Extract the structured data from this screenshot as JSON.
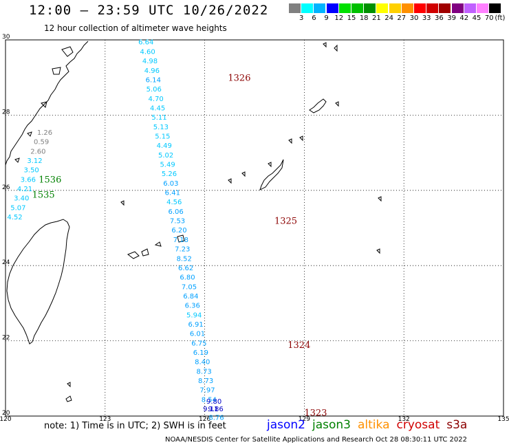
{
  "header": {
    "title": "12:00 – 23:59 UTC 10/26/2022",
    "subtitle": "12 hour collection of altimeter wave heights"
  },
  "legend": {
    "unit": "(ft)",
    "items": [
      {
        "label": "",
        "color": "#808080"
      },
      {
        "label": "3",
        "color": "#00ffff"
      },
      {
        "label": "6",
        "color": "#00b4ff"
      },
      {
        "label": "9",
        "color": "#0000ff"
      },
      {
        "label": "12",
        "color": "#00e000"
      },
      {
        "label": "15",
        "color": "#00c000"
      },
      {
        "label": "18",
        "color": "#009000"
      },
      {
        "label": "21",
        "color": "#ffff00"
      },
      {
        "label": "24",
        "color": "#ffd000"
      },
      {
        "label": "27",
        "color": "#ff9000"
      },
      {
        "label": "30",
        "color": "#ff0000"
      },
      {
        "label": "33",
        "color": "#d00000"
      },
      {
        "label": "36",
        "color": "#a00000"
      },
      {
        "label": "39",
        "color": "#800080"
      },
      {
        "label": "42",
        "color": "#c060ff"
      },
      {
        "label": "45",
        "color": "#ff80ff"
      },
      {
        "label": "70",
        "color": "#000000"
      }
    ]
  },
  "map": {
    "lon_ticks": [
      "120",
      "123",
      "126",
      "129",
      "132",
      "135"
    ],
    "lat_ticks": [
      "20",
      "22",
      "24",
      "26",
      "28",
      "30"
    ],
    "lon_range": [
      120,
      135
    ],
    "lat_range": [
      20,
      30
    ],
    "grid": "dotted",
    "pass_labels": [
      {
        "text": "1326",
        "lon": 126.7,
        "lat": 29.0,
        "color": "#8b0000"
      },
      {
        "text": "1325",
        "lon": 128.1,
        "lat": 25.2,
        "color": "#8b0000"
      },
      {
        "text": "1324",
        "lon": 128.5,
        "lat": 21.9,
        "color": "#8b0000"
      },
      {
        "text": "1323",
        "lon": 129.0,
        "lat": 20.1,
        "color": "#8b0000"
      },
      {
        "text": "1536",
        "lon": 121.0,
        "lat": 26.3,
        "color": "#008000"
      },
      {
        "text": "1535",
        "lon": 120.8,
        "lat": 25.9,
        "color": "#008000"
      }
    ]
  },
  "tracks": [
    {
      "name": "",
      "color_default": "#00c8ff",
      "points": [
        {
          "lon": 124.0,
          "lat": 29.95,
          "v": "6.64"
        },
        {
          "lon": 124.05,
          "lat": 29.7,
          "v": "4.60"
        },
        {
          "lon": 124.12,
          "lat": 29.45,
          "v": "4.98"
        },
        {
          "lon": 124.18,
          "lat": 29.2,
          "v": "4.96"
        },
        {
          "lon": 124.22,
          "lat": 28.95,
          "v": "6.14",
          "c": "#00a0ff"
        },
        {
          "lon": 124.24,
          "lat": 28.7,
          "v": "5.06"
        },
        {
          "lon": 124.3,
          "lat": 28.45,
          "v": "4.70"
        },
        {
          "lon": 124.35,
          "lat": 28.2,
          "v": "4.45"
        },
        {
          "lon": 124.4,
          "lat": 27.95,
          "v": "5.11"
        },
        {
          "lon": 124.45,
          "lat": 27.7,
          "v": "5.13"
        },
        {
          "lon": 124.5,
          "lat": 27.45,
          "v": "5.15"
        },
        {
          "lon": 124.55,
          "lat": 27.2,
          "v": "4.49"
        },
        {
          "lon": 124.6,
          "lat": 26.95,
          "v": "5.02"
        },
        {
          "lon": 124.65,
          "lat": 26.7,
          "v": "5.49"
        },
        {
          "lon": 124.7,
          "lat": 26.45,
          "v": "5.26"
        },
        {
          "lon": 124.75,
          "lat": 26.2,
          "v": "6.03",
          "c": "#00a0ff"
        },
        {
          "lon": 124.8,
          "lat": 25.95,
          "v": "6.41",
          "c": "#00a0ff"
        },
        {
          "lon": 124.85,
          "lat": 25.7,
          "v": "4.56"
        },
        {
          "lon": 124.9,
          "lat": 25.45,
          "v": "6.06",
          "c": "#00a0ff"
        },
        {
          "lon": 124.95,
          "lat": 25.2,
          "v": "7.53",
          "c": "#00a0ff"
        },
        {
          "lon": 125.0,
          "lat": 24.95,
          "v": "6.20",
          "c": "#00a0ff"
        },
        {
          "lon": 125.05,
          "lat": 24.7,
          "v": "7.18",
          "c": "#00a0ff"
        },
        {
          "lon": 125.1,
          "lat": 24.45,
          "v": "7.23",
          "c": "#00a0ff"
        },
        {
          "lon": 125.15,
          "lat": 24.2,
          "v": "8.52",
          "c": "#00a0ff"
        },
        {
          "lon": 125.2,
          "lat": 23.95,
          "v": "6.62",
          "c": "#00a0ff"
        },
        {
          "lon": 125.25,
          "lat": 23.7,
          "v": "6.80",
          "c": "#00a0ff"
        },
        {
          "lon": 125.3,
          "lat": 23.45,
          "v": "7.05",
          "c": "#00a0ff"
        },
        {
          "lon": 125.35,
          "lat": 23.2,
          "v": "6.84",
          "c": "#00a0ff"
        },
        {
          "lon": 125.4,
          "lat": 22.95,
          "v": "6.36",
          "c": "#00a0ff"
        },
        {
          "lon": 125.45,
          "lat": 22.7,
          "v": "5.94"
        },
        {
          "lon": 125.5,
          "lat": 22.45,
          "v": "6.91",
          "c": "#00a0ff"
        },
        {
          "lon": 125.55,
          "lat": 22.2,
          "v": "6.01",
          "c": "#00a0ff"
        },
        {
          "lon": 125.6,
          "lat": 21.95,
          "v": "6.75",
          "c": "#00a0ff"
        },
        {
          "lon": 125.65,
          "lat": 21.7,
          "v": "6.19",
          "c": "#00a0ff"
        },
        {
          "lon": 125.7,
          "lat": 21.45,
          "v": "8.40",
          "c": "#00a0ff"
        },
        {
          "lon": 125.75,
          "lat": 21.2,
          "v": "8.73",
          "c": "#00a0ff"
        },
        {
          "lon": 125.8,
          "lat": 20.95,
          "v": "8.73",
          "c": "#00a0ff"
        },
        {
          "lon": 125.85,
          "lat": 20.7,
          "v": "7.97",
          "c": "#00a0ff"
        },
        {
          "lon": 125.9,
          "lat": 20.45,
          "v": "8.54",
          "c": "#00a0ff"
        },
        {
          "lon": 125.95,
          "lat": 20.2,
          "v": "9.11",
          "c": "#0000c8"
        },
        {
          "lon": 126.05,
          "lat": 20.4,
          "v": "9.80",
          "c": "#0000c8"
        },
        {
          "lon": 126.1,
          "lat": 20.2,
          "v": "9.86",
          "c": "#0000c8"
        },
        {
          "lon": 126.12,
          "lat": 19.97,
          "v": "8.76",
          "c": "#00a0ff"
        }
      ]
    },
    {
      "name": "",
      "color_default": "#00c8ff",
      "points": [
        {
          "lon": 120.95,
          "lat": 27.55,
          "v": "1.26",
          "c": "#808080"
        },
        {
          "lon": 120.85,
          "lat": 27.3,
          "v": "0.59",
          "c": "#808080"
        },
        {
          "lon": 120.75,
          "lat": 27.05,
          "v": "2.60",
          "c": "#808080"
        },
        {
          "lon": 120.65,
          "lat": 26.8,
          "v": "3.12"
        },
        {
          "lon": 120.55,
          "lat": 26.55,
          "v": "3.50"
        },
        {
          "lon": 120.45,
          "lat": 26.3,
          "v": "3.66"
        },
        {
          "lon": 120.35,
          "lat": 26.05,
          "v": "4.21"
        },
        {
          "lon": 120.25,
          "lat": 25.8,
          "v": "3.40"
        },
        {
          "lon": 120.15,
          "lat": 25.55,
          "v": "5.07"
        },
        {
          "lon": 120.05,
          "lat": 25.3,
          "v": "4.52"
        }
      ]
    }
  ],
  "footer": {
    "note": "note: 1) Time is in UTC; 2) SWH is in feet",
    "satellites": [
      {
        "name": "jason2",
        "color": "#0000ff"
      },
      {
        "name": "jason3",
        "color": "#008000"
      },
      {
        "name": "altika",
        "color": "#ff9000"
      },
      {
        "name": "cryosat",
        "color": "#d00000"
      },
      {
        "name": "s3a",
        "color": "#8b0000"
      }
    ],
    "credit": "NOAA/NESDIS Center for Satellite Applications and Research    Oct 28 08:30:11 UTC 2022"
  }
}
